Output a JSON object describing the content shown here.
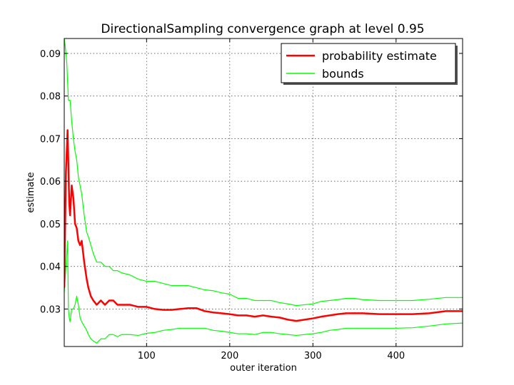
{
  "chart_data": {
    "type": "line",
    "title": "DirectionalSampling convergence graph at level 0.95",
    "xlabel": "outer iteration",
    "ylabel": "estimate",
    "xlim": [
      1,
      480
    ],
    "ylim": [
      0.0212,
      0.0935
    ],
    "xticks": [
      100,
      200,
      300,
      400
    ],
    "xtick_labels": [
      "100",
      "200",
      "300",
      "400"
    ],
    "yticks": [
      0.03,
      0.04,
      0.05,
      0.06,
      0.07,
      0.08,
      0.09
    ],
    "ytick_labels": [
      "0.03",
      "0.04",
      "0.05",
      "0.06",
      "0.07",
      "0.08",
      "0.09"
    ],
    "grid": true,
    "legend_position": "top-right",
    "legend": [
      "probability estimate",
      "bounds"
    ],
    "series": [
      {
        "name": "probability estimate",
        "color": "#ff0000",
        "x": [
          1,
          3,
          5,
          7,
          8,
          10,
          12,
          14,
          16,
          18,
          20,
          22,
          25,
          28,
          30,
          33,
          36,
          40,
          45,
          50,
          55,
          60,
          65,
          70,
          80,
          90,
          100,
          110,
          120,
          130,
          140,
          150,
          160,
          170,
          180,
          190,
          200,
          210,
          220,
          230,
          240,
          250,
          260,
          270,
          280,
          290,
          300,
          310,
          320,
          330,
          340,
          350,
          360,
          380,
          400,
          420,
          440,
          460,
          480
        ],
        "values": [
          0.035,
          0.062,
          0.072,
          0.055,
          0.052,
          0.059,
          0.056,
          0.05,
          0.049,
          0.046,
          0.045,
          0.046,
          0.041,
          0.037,
          0.035,
          0.033,
          0.032,
          0.031,
          0.032,
          0.031,
          0.032,
          0.032,
          0.031,
          0.031,
          0.031,
          0.0305,
          0.0305,
          0.03,
          0.0298,
          0.0298,
          0.03,
          0.0302,
          0.0302,
          0.0295,
          0.0292,
          0.029,
          0.0288,
          0.0285,
          0.0285,
          0.0282,
          0.0285,
          0.0282,
          0.028,
          0.0275,
          0.0272,
          0.0275,
          0.0278,
          0.0282,
          0.0285,
          0.0288,
          0.029,
          0.029,
          0.029,
          0.0288,
          0.0288,
          0.0288,
          0.029,
          0.0295,
          0.0295
        ]
      },
      {
        "name": "bounds",
        "color": "#00ff00",
        "x": [
          1,
          2,
          4,
          6,
          8,
          10,
          12,
          14,
          16,
          18,
          20,
          22,
          25,
          28,
          30,
          33,
          36,
          40,
          45,
          50,
          55,
          60,
          65,
          70,
          80,
          90,
          100,
          110,
          120,
          130,
          140,
          150,
          160,
          170,
          180,
          190,
          200,
          210,
          220,
          230,
          240,
          250,
          260,
          270,
          280,
          290,
          300,
          310,
          320,
          330,
          340,
          350,
          360,
          380,
          400,
          420,
          440,
          460,
          480
        ],
        "values": [
          0.0935,
          0.092,
          0.088,
          0.079,
          0.079,
          0.074,
          0.07,
          0.067,
          0.065,
          0.061,
          0.059,
          0.057,
          0.052,
          0.048,
          0.047,
          0.045,
          0.043,
          0.041,
          0.041,
          0.04,
          0.04,
          0.039,
          0.039,
          0.0385,
          0.038,
          0.037,
          0.0365,
          0.0365,
          0.036,
          0.0355,
          0.0355,
          0.0355,
          0.035,
          0.0345,
          0.0343,
          0.0338,
          0.0335,
          0.0325,
          0.0325,
          0.032,
          0.032,
          0.032,
          0.0315,
          0.0312,
          0.0308,
          0.031,
          0.0312,
          0.0318,
          0.032,
          0.0322,
          0.0325,
          0.0325,
          0.0322,
          0.032,
          0.032,
          0.032,
          0.0323,
          0.0327,
          0.0327
        ]
      },
      {
        "color": "#00ff00",
        "x": [
          1,
          3,
          5,
          6,
          7,
          8,
          10,
          12,
          14,
          16,
          18,
          20,
          22,
          25,
          28,
          30,
          33,
          36,
          40,
          45,
          50,
          55,
          60,
          65,
          70,
          80,
          90,
          100,
          110,
          120,
          130,
          140,
          150,
          160,
          170,
          180,
          190,
          200,
          210,
          220,
          230,
          240,
          250,
          260,
          270,
          280,
          290,
          300,
          310,
          320,
          330,
          340,
          350,
          360,
          380,
          400,
          420,
          440,
          460,
          480
        ],
        "values": [
          0.034,
          0.04,
          0.046,
          0.03,
          0.028,
          0.027,
          0.03,
          0.03,
          0.031,
          0.033,
          0.031,
          0.028,
          0.027,
          0.026,
          0.025,
          0.024,
          0.023,
          0.0225,
          0.022,
          0.023,
          0.023,
          0.024,
          0.024,
          0.0235,
          0.024,
          0.024,
          0.0238,
          0.0243,
          0.0245,
          0.025,
          0.0252,
          0.0255,
          0.0255,
          0.0255,
          0.0255,
          0.025,
          0.0248,
          0.0245,
          0.0242,
          0.0242,
          0.024,
          0.0245,
          0.0245,
          0.0242,
          0.024,
          0.0238,
          0.024,
          0.0242,
          0.0245,
          0.025,
          0.0252,
          0.0255,
          0.0255,
          0.0255,
          0.0255,
          0.0255,
          0.0256,
          0.026,
          0.0265,
          0.0267
        ]
      }
    ]
  }
}
